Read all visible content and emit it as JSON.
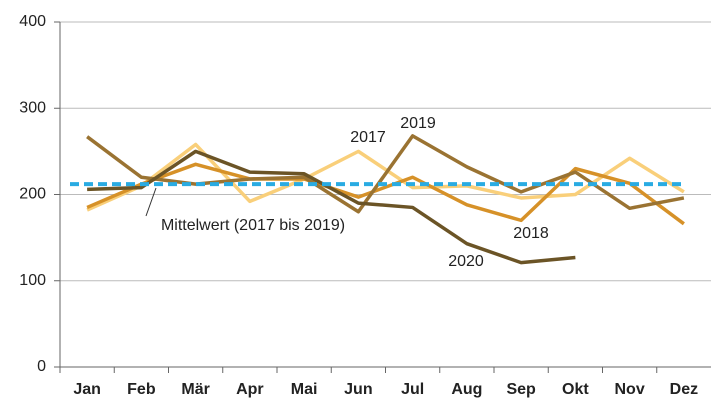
{
  "chart_data": {
    "type": "line",
    "categories": [
      "Jan",
      "Feb",
      "Mär",
      "Apr",
      "Mai",
      "Jun",
      "Jul",
      "Aug",
      "Sep",
      "Okt",
      "Nov",
      "Dez"
    ],
    "series": [
      {
        "name": "2017",
        "color": "#f9cf7a",
        "values": [
          182,
          210,
          258,
          192,
          218,
          250,
          208,
          210,
          196,
          200,
          242,
          203
        ]
      },
      {
        "name": "2018",
        "color": "#d69128",
        "values": [
          185,
          212,
          235,
          218,
          218,
          197,
          220,
          188,
          170,
          230,
          213,
          166
        ]
      },
      {
        "name": "2019",
        "color": "#9a7332",
        "values": [
          267,
          220,
          212,
          218,
          220,
          180,
          268,
          232,
          203,
          226,
          184,
          196
        ]
      },
      {
        "name": "2020",
        "color": "#6b5426",
        "values": [
          206,
          208,
          250,
          226,
          224,
          190,
          185,
          143,
          121,
          127,
          null,
          null
        ]
      }
    ],
    "mean": {
      "label": "Mittelwert (2017 bis 2019)",
      "value": 212,
      "color": "#29abe2"
    },
    "ylim": [
      0,
      400
    ],
    "yticks": [
      0,
      100,
      200,
      300,
      400
    ],
    "grid": true
  }
}
